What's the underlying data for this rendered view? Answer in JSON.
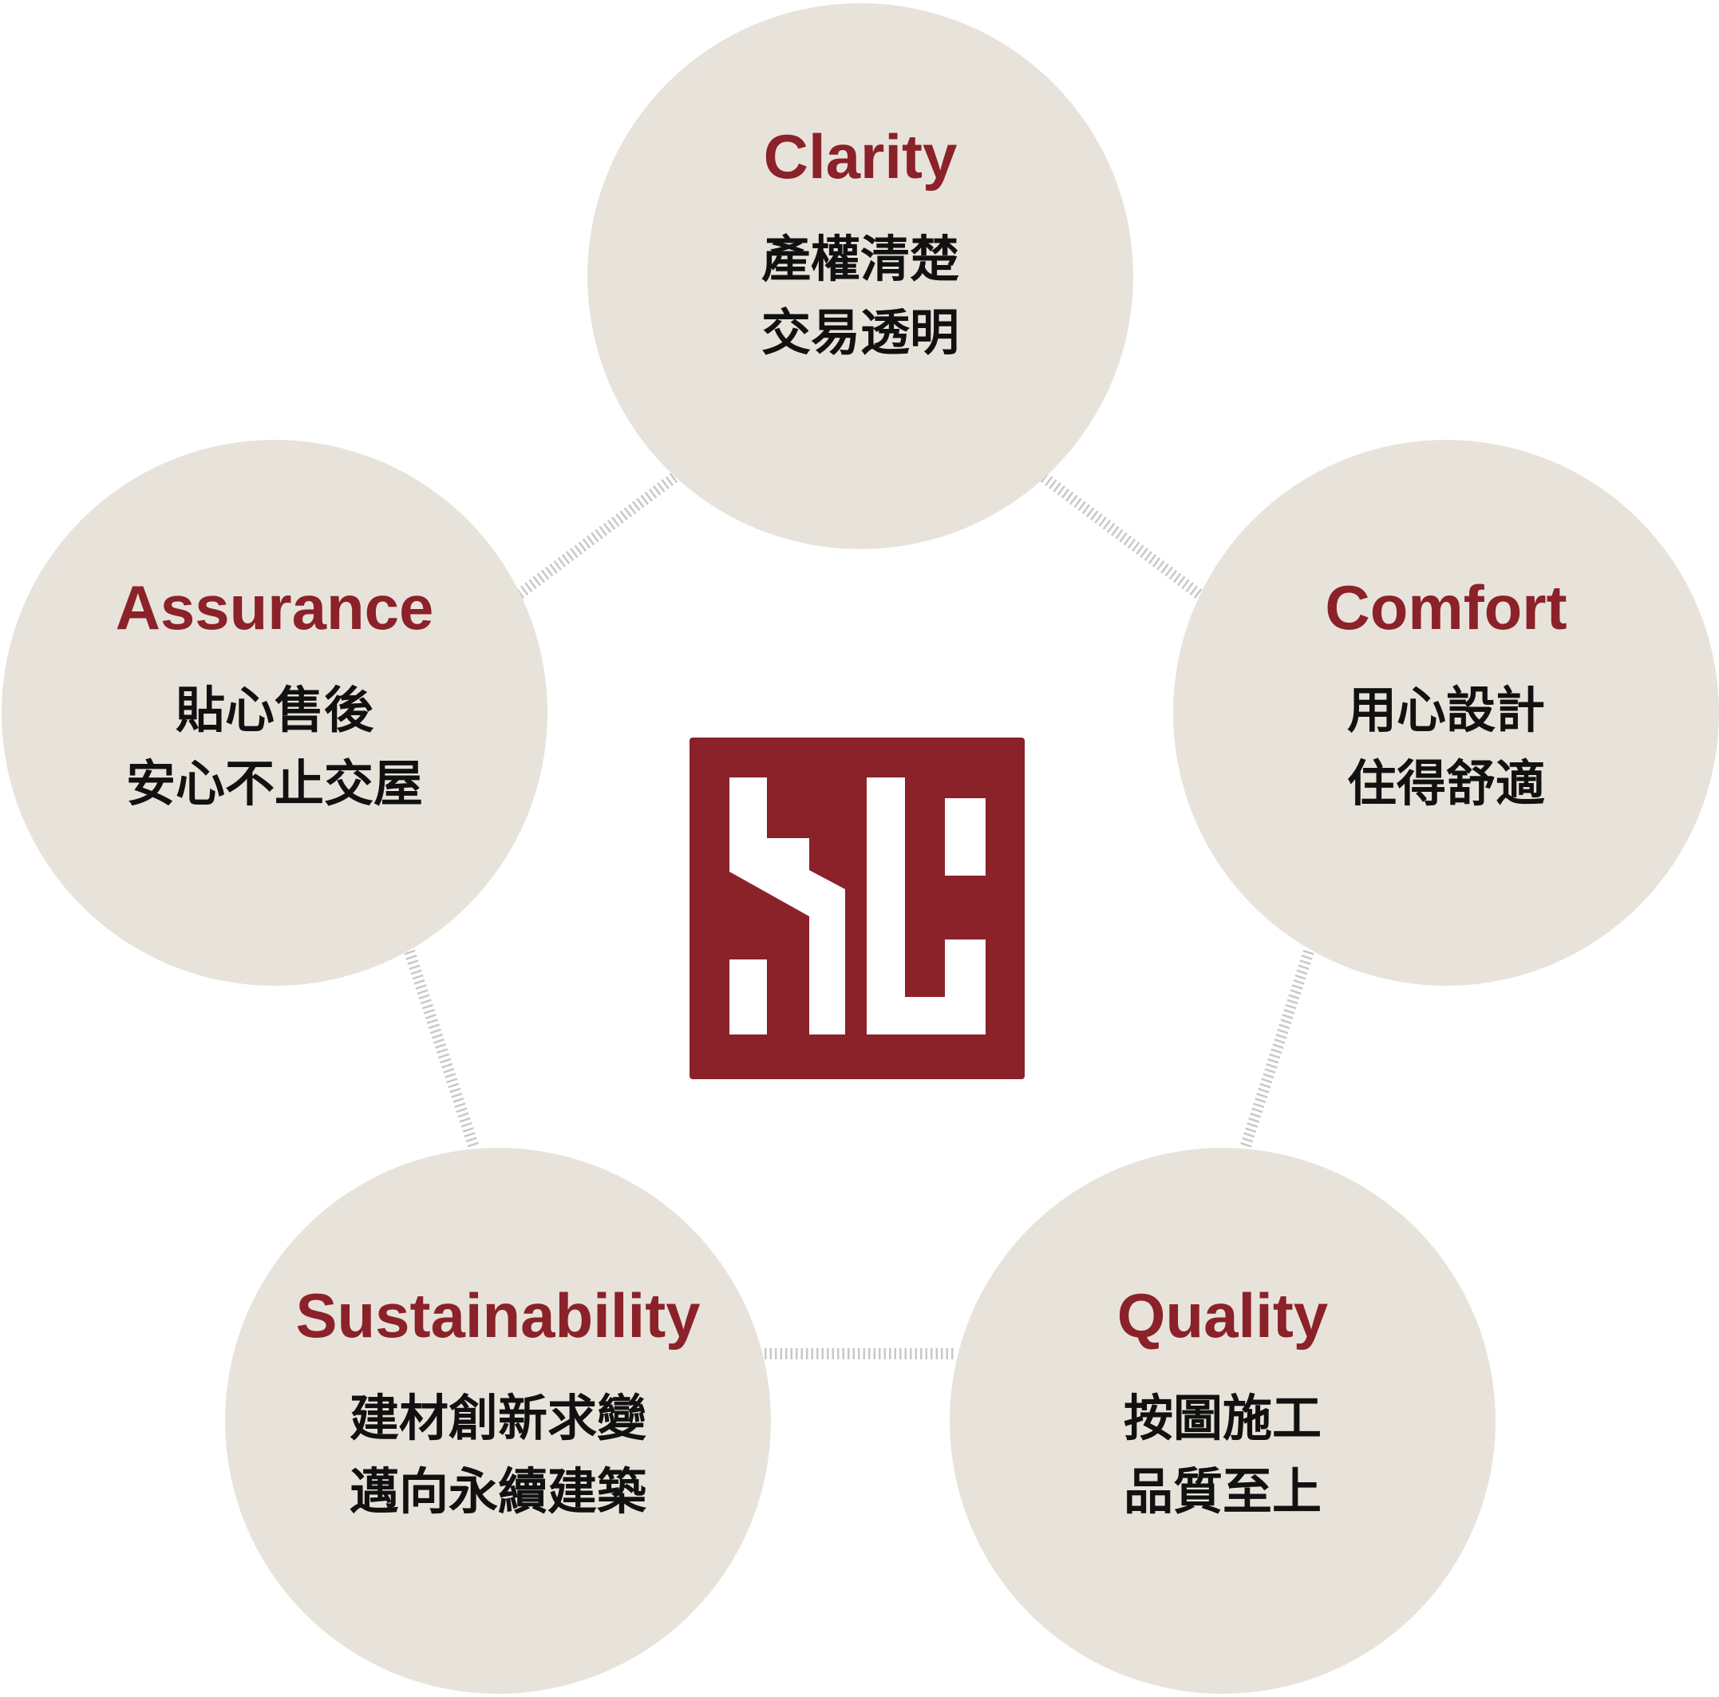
{
  "colors": {
    "accent": "#8b2129",
    "node_fill": "#e8e3da",
    "connector": "#c8c8c8",
    "text": "#111111"
  },
  "logo": {
    "icon": "sl-monogram-logo"
  },
  "nodes": {
    "clarity": {
      "title": "Clarity",
      "lines": [
        "產權清楚",
        "交易透明"
      ]
    },
    "comfort": {
      "title": "Comfort",
      "lines": [
        "用心設計",
        "住得舒適"
      ]
    },
    "assurance": {
      "title": "Assurance",
      "lines": [
        "貼心售後",
        "安心不止交屋"
      ]
    },
    "sustainability": {
      "title": "Sustainability",
      "lines": [
        "建材創新求變",
        "邁向永續建築"
      ]
    },
    "quality": {
      "title": "Quality",
      "lines": [
        "按圖施工",
        "品質至上"
      ]
    }
  }
}
